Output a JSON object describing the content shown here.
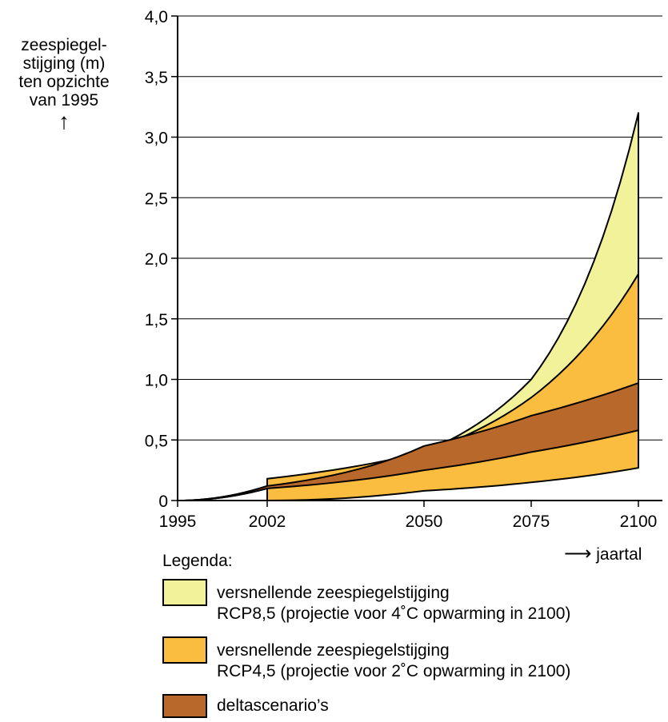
{
  "y_title_lines": [
    "zeespiegel-",
    "stijging (m)",
    "ten opzichte",
    "van 1995"
  ],
  "y_arrow": "↑",
  "x_unit_arrow": "⟶",
  "x_unit": "jaartal",
  "legend_title": "Legenda:",
  "legend": [
    {
      "line1": "versnellende zeespiegelstijging",
      "line2": "RCP8,5 (projectie voor 4˚C opwarming in 2100)",
      "color": "#f2f29b"
    },
    {
      "line1": "versnellende zeespiegelstijging",
      "line2": "RCP4,5 (projectie voor 2˚C opwarming in 2100)",
      "color": "#fbbd3f"
    },
    {
      "line1": "deltascenario’s",
      "line2": "",
      "color": "#b8682a"
    }
  ],
  "chart_data": {
    "type": "area",
    "x_tick_labels": [
      "1995",
      "2002",
      "2050",
      "2075",
      "2100"
    ],
    "y_ticks": [
      "0",
      "0,5",
      "1,0",
      "1,5",
      "2,0",
      "2,5",
      "3,0",
      "3,5",
      "4,0"
    ],
    "ylim": [
      0,
      4
    ],
    "grid": true,
    "series": [
      {
        "name": "versnellende zeespiegelstijging RCP8,5 (projectie voor 4˚C opwarming in 2100)",
        "color": "#f2f29b",
        "upper": [
          [
            1995,
            0
          ],
          [
            2002,
            0.12
          ],
          [
            2050,
            0.4
          ],
          [
            2075,
            1.0
          ],
          [
            2100,
            3.2
          ]
        ],
        "lower": [
          [
            1995,
            0
          ],
          [
            2002,
            0.1
          ],
          [
            2050,
            0.3
          ],
          [
            2075,
            0.5
          ],
          [
            2100,
            0.73
          ]
        ]
      },
      {
        "name": "versnellende zeespiegelstijging RCP4,5 (projectie voor 2˚C opwarming in 2100)",
        "color": "#fbbd3f",
        "upper": [
          [
            2002,
            0.18
          ],
          [
            2050,
            0.4
          ],
          [
            2075,
            0.85
          ],
          [
            2100,
            1.87
          ]
        ],
        "lower": [
          [
            2002,
            0
          ],
          [
            2050,
            0.08
          ],
          [
            2075,
            0.15
          ],
          [
            2100,
            0.27
          ]
        ]
      },
      {
        "name": "deltascenario’s",
        "color": "#b8682a",
        "upper": [
          [
            1995,
            0
          ],
          [
            2002,
            0.12
          ],
          [
            2050,
            0.45
          ],
          [
            2075,
            0.7
          ],
          [
            2100,
            0.97
          ]
        ],
        "lower": [
          [
            1995,
            0
          ],
          [
            2002,
            0.1
          ],
          [
            2050,
            0.25
          ],
          [
            2075,
            0.4
          ],
          [
            2100,
            0.58
          ]
        ]
      }
    ]
  }
}
